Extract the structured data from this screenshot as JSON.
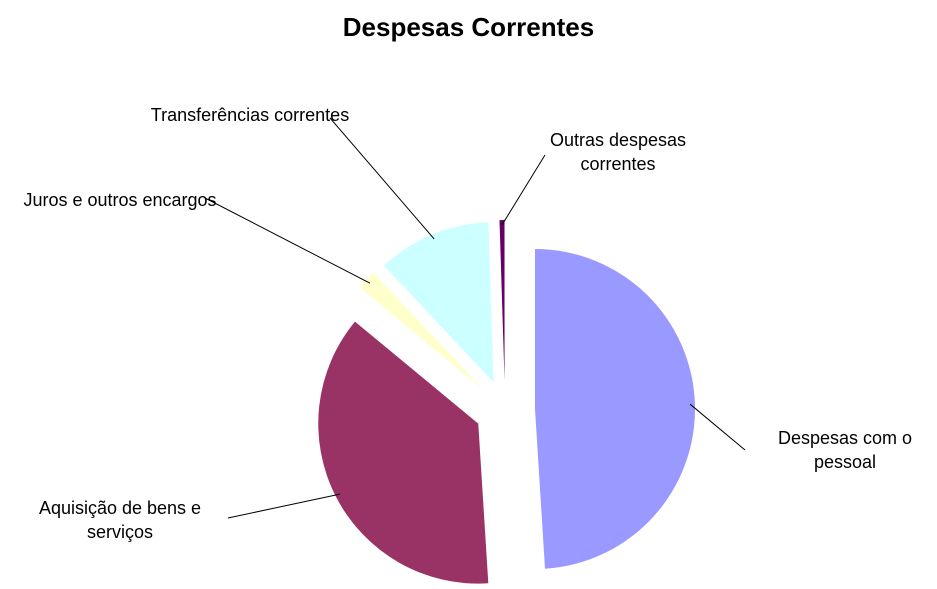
{
  "chart_data": {
    "type": "pie",
    "title": "Despesas Correntes",
    "categories": [
      "Despesas com o pessoal",
      "Aquisição de bens e serviços",
      "Juros e outros encargos",
      "Transferências correntes",
      "Outras despesas correntes"
    ],
    "values": [
      49,
      37,
      2,
      11.5,
      0.5
    ],
    "colors": [
      "#9999ff",
      "#993366",
      "#ffffcc",
      "#ccffff",
      "#660066"
    ]
  }
}
